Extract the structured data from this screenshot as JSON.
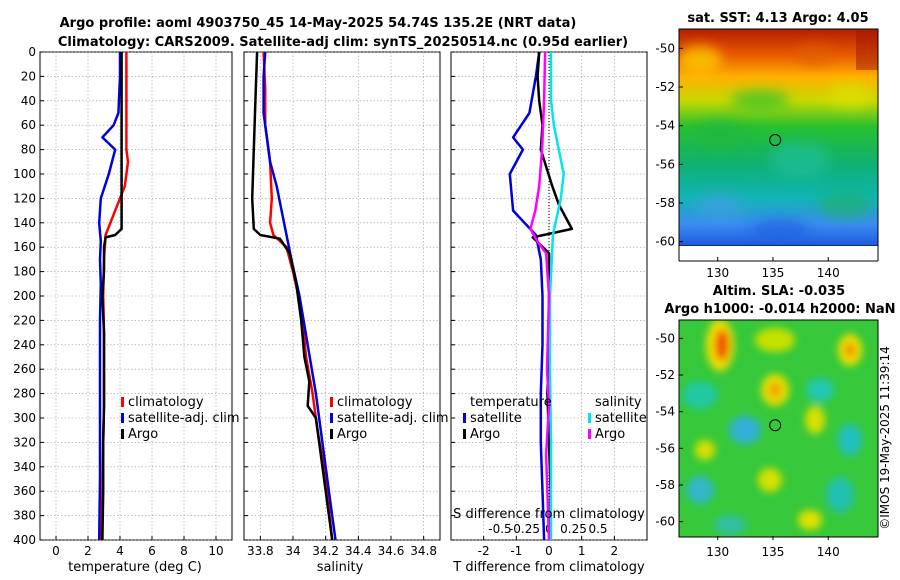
{
  "title": {
    "line1": "Argo profile: aoml 4903750_45 14-May-2025 54.74S 135.2E (NRT data)",
    "line2": "Climatology: CARS2009. Satellite-adj clim: synTS_20250514.nc (0.95d earlier)"
  },
  "colors": {
    "climatology": "#ff0000",
    "satellite": "#0000dd",
    "argo": "#000000",
    "salinity_sat": "#00e5ee",
    "salinity_argo": "#ff00ff"
  },
  "chart_data": [
    {
      "type": "line",
      "name": "temperature-profile",
      "xlabel": "temperature (deg C)",
      "xlim": [
        -1,
        11
      ],
      "xticks": [
        0,
        2,
        4,
        6,
        8,
        10
      ],
      "ylim": [
        0,
        400
      ],
      "yticks": [
        0,
        20,
        40,
        60,
        80,
        100,
        120,
        140,
        160,
        180,
        200,
        220,
        240,
        260,
        280,
        300,
        320,
        340,
        360,
        380,
        400
      ],
      "legend": [
        "climatology",
        "satellite-adj. clim",
        "Argo"
      ],
      "series": [
        {
          "name": "climatology",
          "color": "#ff0000",
          "points": [
            [
              4.4,
              0
            ],
            [
              4.4,
              20
            ],
            [
              4.4,
              60
            ],
            [
              4.4,
              80
            ],
            [
              4.5,
              90
            ],
            [
              4.3,
              110
            ],
            [
              3.7,
              130
            ],
            [
              3.1,
              150
            ],
            [
              3.0,
              170
            ],
            [
              2.95,
              200
            ],
            [
              3.0,
              230
            ],
            [
              3.0,
              260
            ],
            [
              3.0,
              290
            ],
            [
              2.95,
              320
            ],
            [
              2.9,
              360
            ],
            [
              2.85,
              400
            ]
          ]
        },
        {
          "name": "satellite-adj. clim",
          "color": "#0000dd",
          "points": [
            [
              4.0,
              0
            ],
            [
              4.0,
              20
            ],
            [
              3.9,
              50
            ],
            [
              3.6,
              60
            ],
            [
              2.9,
              70
            ],
            [
              3.7,
              80
            ],
            [
              3.3,
              100
            ],
            [
              2.8,
              120
            ],
            [
              2.7,
              140
            ],
            [
              2.8,
              155
            ],
            [
              2.75,
              170
            ],
            [
              2.8,
              190
            ],
            [
              2.75,
              220
            ],
            [
              2.75,
              260
            ],
            [
              2.75,
              300
            ],
            [
              2.75,
              350
            ],
            [
              2.7,
              400
            ]
          ]
        },
        {
          "name": "Argo",
          "color": "#000000",
          "points": [
            [
              4.1,
              0
            ],
            [
              4.1,
              30
            ],
            [
              4.1,
              60
            ],
            [
              4.1,
              90
            ],
            [
              4.1,
              120
            ],
            [
              4.1,
              145
            ],
            [
              3.7,
              150
            ],
            [
              3.1,
              152
            ],
            [
              3.0,
              160
            ],
            [
              3.0,
              180
            ],
            [
              2.9,
              200
            ],
            [
              3.0,
              230
            ],
            [
              3.0,
              260
            ],
            [
              3.0,
              290
            ],
            [
              2.95,
              320
            ],
            [
              2.95,
              360
            ],
            [
              2.9,
              400
            ]
          ]
        }
      ]
    },
    {
      "type": "line",
      "name": "salinity-profile",
      "xlabel": "salinity",
      "xlim": [
        33.7,
        34.9
      ],
      "xticks": [
        33.8,
        34,
        34.2,
        34.4,
        34.6,
        34.8
      ],
      "ylim": [
        0,
        400
      ],
      "legend": [
        "climatology",
        "satellite-adj. clim",
        "Argo"
      ],
      "series": [
        {
          "name": "climatology",
          "color": "#ff0000",
          "points": [
            [
              33.82,
              0
            ],
            [
              33.83,
              30
            ],
            [
              33.83,
              60
            ],
            [
              33.86,
              90
            ],
            [
              33.87,
              120
            ],
            [
              33.86,
              140
            ],
            [
              33.88,
              150
            ],
            [
              33.96,
              160
            ],
            [
              34.0,
              180
            ],
            [
              34.05,
              210
            ],
            [
              34.08,
              250
            ],
            [
              34.12,
              280
            ],
            [
              34.15,
              310
            ],
            [
              34.2,
              350
            ],
            [
              34.24,
              400
            ]
          ]
        },
        {
          "name": "satellite-adj. clim",
          "color": "#0000dd",
          "points": [
            [
              33.83,
              0
            ],
            [
              33.82,
              20
            ],
            [
              33.82,
              50
            ],
            [
              33.84,
              70
            ],
            [
              33.86,
              90
            ],
            [
              33.9,
              110
            ],
            [
              33.93,
              130
            ],
            [
              33.96,
              150
            ],
            [
              33.99,
              170
            ],
            [
              34.04,
              200
            ],
            [
              34.09,
              240
            ],
            [
              34.14,
              280
            ],
            [
              34.18,
              320
            ],
            [
              34.22,
              360
            ],
            [
              34.26,
              400
            ]
          ]
        },
        {
          "name": "Argo",
          "color": "#000000",
          "points": [
            [
              33.78,
              0
            ],
            [
              33.77,
              40
            ],
            [
              33.76,
              80
            ],
            [
              33.75,
              120
            ],
            [
              33.76,
              145
            ],
            [
              33.8,
              150
            ],
            [
              33.92,
              153
            ],
            [
              33.98,
              165
            ],
            [
              34.02,
              190
            ],
            [
              34.05,
              220
            ],
            [
              34.07,
              250
            ],
            [
              34.1,
              270
            ],
            [
              34.09,
              290
            ],
            [
              34.14,
              300
            ],
            [
              34.17,
              330
            ],
            [
              34.2,
              360
            ],
            [
              34.24,
              400
            ]
          ]
        }
      ]
    },
    {
      "type": "line",
      "name": "difference-profile",
      "xlabel": "T difference from climatology",
      "xlabel_top": "S difference from climatology",
      "xlim": [
        -3,
        3
      ],
      "xticks": [
        -2,
        -1,
        0,
        1,
        2
      ],
      "xticklabels": [
        "-2",
        "-1",
        "0",
        "1",
        "2"
      ],
      "top_ticks": [
        -0.5,
        -0.25,
        0,
        0.25,
        0.5
      ],
      "top_ticklabels": [
        "-0.5",
        "-0.25",
        "0",
        "0.25",
        "0.5"
      ],
      "ylim": [
        0,
        400
      ],
      "legend_left": {
        "heading": "temperature",
        "items": [
          "satellite",
          "Argo"
        ]
      },
      "legend_right": {
        "heading": "salinity",
        "items": [
          "satellite",
          "Argo"
        ]
      },
      "series": [
        {
          "name": "temperature satellite",
          "color": "#0000dd",
          "points": [
            [
              -0.3,
              0
            ],
            [
              -0.4,
              20
            ],
            [
              -0.6,
              50
            ],
            [
              -1.1,
              70
            ],
            [
              -0.8,
              80
            ],
            [
              -1.2,
              100
            ],
            [
              -1.1,
              130
            ],
            [
              -0.4,
              150
            ],
            [
              -0.25,
              170
            ],
            [
              -0.2,
              200
            ],
            [
              -0.2,
              240
            ],
            [
              -0.25,
              280
            ],
            [
              -0.25,
              320
            ],
            [
              -0.2,
              360
            ],
            [
              -0.15,
              400
            ]
          ]
        },
        {
          "name": "temperature Argo",
          "color": "#000000",
          "points": [
            [
              -0.3,
              0
            ],
            [
              -0.35,
              20
            ],
            [
              -0.3,
              40
            ],
            [
              -0.2,
              60
            ],
            [
              -0.25,
              80
            ],
            [
              0.1,
              110
            ],
            [
              0.3,
              125
            ],
            [
              0.7,
              145
            ],
            [
              -0.5,
              152
            ],
            [
              0.0,
              165
            ],
            [
              0.0,
              200
            ],
            [
              0.0,
              240
            ],
            [
              -0.05,
              280
            ],
            [
              0.0,
              320
            ],
            [
              0.05,
              360
            ],
            [
              0.05,
              400
            ]
          ]
        },
        {
          "name": "salinity satellite",
          "color": "#00e5ee",
          "points": [
            [
              0.02,
              0
            ],
            [
              0.02,
              40
            ],
            [
              0.05,
              60
            ],
            [
              0.1,
              80
            ],
            [
              0.15,
              100
            ],
            [
              0.12,
              120
            ],
            [
              0.04,
              150
            ],
            [
              0.01,
              200
            ],
            [
              0.01,
              260
            ],
            [
              0.02,
              320
            ],
            [
              0.02,
              400
            ]
          ]
        },
        {
          "name": "salinity Argo",
          "color": "#ff00ff",
          "points": [
            [
              -0.04,
              0
            ],
            [
              -0.05,
              40
            ],
            [
              -0.07,
              80
            ],
            [
              -0.1,
              110
            ],
            [
              -0.14,
              130
            ],
            [
              -0.19,
              145
            ],
            [
              -0.12,
              155
            ],
            [
              -0.03,
              165
            ],
            [
              0.0,
              200
            ],
            [
              -0.02,
              260
            ],
            [
              0.0,
              290
            ],
            [
              -0.03,
              330
            ],
            [
              0.0,
              400
            ]
          ]
        }
      ]
    },
    {
      "type": "heatmap",
      "name": "sst-map",
      "title": "sat. SST: 4.13 Argo: 4.05",
      "xlim": [
        126.5,
        144.5
      ],
      "ylim": [
        -61,
        -49
      ],
      "xticks": [
        130,
        135,
        140
      ],
      "yticks": [
        -50,
        -52,
        -54,
        -56,
        -58,
        -60
      ],
      "yticklabels": [
        "-50",
        "-52",
        "-54",
        "-56",
        "-58",
        "-60"
      ],
      "marker": {
        "lon": 135.2,
        "lat": -54.74
      }
    },
    {
      "type": "heatmap",
      "name": "sla-map",
      "title_line1": "Altim. SLA: -0.035",
      "title_line2": "Argo h1000: -0.014 h2000: NaN",
      "xlim": [
        126.5,
        144.5
      ],
      "ylim": [
        -61,
        -49
      ],
      "xticks": [
        130,
        135,
        140
      ],
      "yticks": [
        -50,
        -52,
        -54,
        -56,
        -58,
        -60
      ],
      "yticklabels": [
        "-50",
        "-52",
        "-54",
        "-56",
        "-58",
        "-60"
      ],
      "marker": {
        "lon": 135.2,
        "lat": -54.74
      }
    }
  ],
  "watermark": "©IMOS 19-May-2025 11:39:14"
}
